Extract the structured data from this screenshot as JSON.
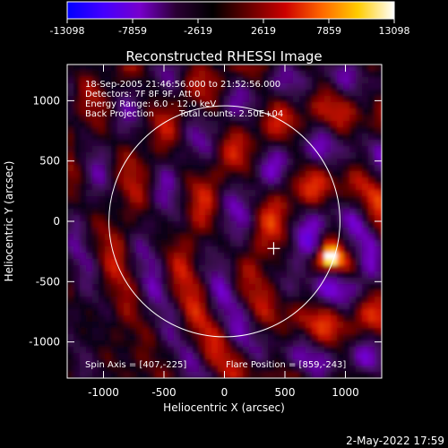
{
  "chart_data": {
    "type": "heatmap",
    "title": "Reconstructed RHESSI Image",
    "xlabel": "Heliocentric X (arcsec)",
    "ylabel": "Heliocentric Y (arcsec)",
    "xlim": [
      -1300,
      1300
    ],
    "ylim": [
      -1300,
      1300
    ],
    "x_ticks": [
      -1000,
      -500,
      0,
      500,
      1000
    ],
    "y_ticks": [
      1000,
      500,
      0,
      -500,
      -1000
    ],
    "colorbar": {
      "min": -13098,
      "max": 13098,
      "tick_labels": [
        "-13098",
        "-7859",
        "-2619",
        "2619",
        "7859",
        "13098"
      ],
      "colors": [
        "#0000ff",
        "#4400ff",
        "#7700cc",
        "#2a0033",
        "#000000",
        "#660000",
        "#cc0000",
        "#ff6600",
        "#ffcc00",
        "#ffffff"
      ]
    },
    "annotations": {
      "time_range": "18-Sep-2005 21:46:56.000 to 21:52:56.000",
      "detectors": "Detectors: 7F 8F 9F, Att 0",
      "energy_range": "Energy Range: 6.0 - 12.0 keV",
      "method": "Back Projection",
      "total_counts": "Total counts: 2.50E+04",
      "spin_axis": "Spin Axis = [407,-225]",
      "flare_position": "Flare Position = [859,-243]"
    },
    "solar_limb": {
      "center": [
        0,
        0
      ],
      "radius_arcsec": 955
    },
    "spin_axis_marker": [
      407,
      -225
    ],
    "bright_source": [
      880,
      -300
    ]
  },
  "footer": {
    "date": "2-May-2022 17:59"
  }
}
